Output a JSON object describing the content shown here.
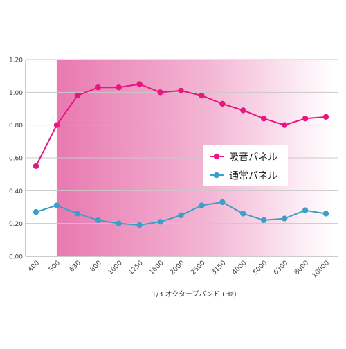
{
  "chart_data": {
    "type": "line",
    "xlabel": "1/3 オクターブバンド (Hz)",
    "ylabel": "",
    "categories": [
      "400",
      "500",
      "630",
      "800",
      "1000",
      "1250",
      "1600",
      "2000",
      "2500",
      "3150",
      "4000",
      "5000",
      "6300",
      "8000",
      "10000"
    ],
    "ylim": [
      0,
      1.2
    ],
    "yticks": [
      "0.00",
      "0.20",
      "0.40",
      "0.60",
      "0.80",
      "1.00",
      "1.20"
    ],
    "grid": true,
    "legend_position": "right-middle",
    "highlight_band": {
      "from_category": "500",
      "to_category": "10000",
      "color_start": "#e879b0",
      "color_end": "#ffffff"
    },
    "series": [
      {
        "name": "吸音パネル",
        "color": "#e6177f",
        "values": [
          0.55,
          0.8,
          0.98,
          1.03,
          1.03,
          1.05,
          1.0,
          1.01,
          0.98,
          0.93,
          0.89,
          0.84,
          0.8,
          0.84,
          0.85
        ]
      },
      {
        "name": "通常パネル",
        "color": "#3a9fc9",
        "values": [
          0.27,
          0.31,
          0.26,
          0.22,
          0.2,
          0.19,
          0.21,
          0.25,
          0.31,
          0.33,
          0.26,
          0.22,
          0.23,
          0.28,
          0.26
        ]
      }
    ]
  }
}
